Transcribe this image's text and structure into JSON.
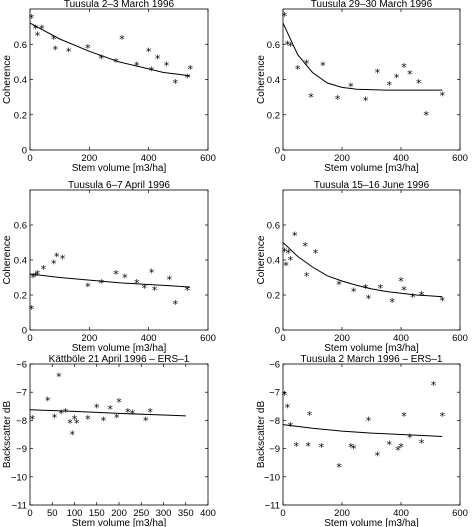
{
  "chart_data": [
    {
      "type": "scatter",
      "title": "Tuusula 2–3 March 1996",
      "xlabel": "Stem volume  [m3/ha]",
      "ylabel": "Coherence",
      "xlim": [
        0,
        600
      ],
      "ylim": [
        0,
        0.8
      ],
      "xticks": [
        0,
        200,
        400,
        600
      ],
      "yticks": [
        0,
        0.2,
        0.4,
        0.6
      ],
      "ytick_labels": [
        "0",
        "0.2",
        "0.4",
        "0.6"
      ],
      "series": [
        {
          "marker": "star",
          "x": [
            5,
            18,
            25,
            40,
            80,
            85,
            130,
            195,
            240,
            290,
            310,
            360,
            400,
            410,
            430,
            460,
            490,
            530,
            540
          ],
          "y": [
            0.75,
            0.69,
            0.65,
            0.69,
            0.63,
            0.57,
            0.56,
            0.58,
            0.52,
            0.5,
            0.63,
            0.48,
            0.56,
            0.45,
            0.52,
            0.48,
            0.38,
            0.41,
            0.46
          ]
        },
        {
          "marker": "line",
          "x": [
            0,
            100,
            200,
            300,
            400,
            450,
            500,
            540
          ],
          "y": [
            0.72,
            0.63,
            0.56,
            0.5,
            0.46,
            0.44,
            0.43,
            0.42
          ]
        }
      ]
    },
    {
      "type": "scatter",
      "title": "Tuusula 29–30 March 1996",
      "xlabel": "Stem volume  [m3/ha]",
      "ylabel": "Coherence",
      "xlim": [
        0,
        600
      ],
      "ylim": [
        0,
        0.8
      ],
      "xticks": [
        0,
        200,
        400,
        600
      ],
      "yticks": [
        0,
        0.2,
        0.4,
        0.6
      ],
      "ytick_labels": [
        "0",
        "0.2",
        "0.4",
        "0.6"
      ],
      "series": [
        {
          "marker": "star",
          "x": [
            5,
            15,
            25,
            50,
            80,
            95,
            135,
            185,
            230,
            280,
            320,
            360,
            385,
            410,
            430,
            460,
            485,
            540
          ],
          "y": [
            0.76,
            0.6,
            0.59,
            0.46,
            0.49,
            0.3,
            0.48,
            0.29,
            0.36,
            0.28,
            0.44,
            0.37,
            0.41,
            0.47,
            0.43,
            0.38,
            0.2,
            0.31
          ]
        },
        {
          "marker": "line",
          "x": [
            0,
            50,
            100,
            150,
            200,
            250,
            350,
            450,
            540
          ],
          "y": [
            0.72,
            0.54,
            0.44,
            0.38,
            0.355,
            0.345,
            0.34,
            0.34,
            0.34
          ]
        }
      ]
    },
    {
      "type": "scatter",
      "title": "Tuusula 6–7 April 1996",
      "xlabel": "Stem volume  [m3/ha]",
      "ylabel": "Coherence",
      "xlim": [
        0,
        600
      ],
      "ylim": [
        0,
        0.8
      ],
      "xticks": [
        0,
        200,
        400,
        600
      ],
      "yticks": [
        0,
        0.2,
        0.4,
        0.6
      ],
      "ytick_labels": [
        "0",
        "0.2",
        "0.4",
        "0.6"
      ],
      "series": [
        {
          "marker": "star",
          "x": [
            5,
            10,
            18,
            25,
            45,
            80,
            90,
            110,
            195,
            240,
            290,
            320,
            360,
            385,
            410,
            420,
            470,
            490,
            530
          ],
          "y": [
            0.12,
            0.3,
            0.31,
            0.32,
            0.35,
            0.38,
            0.42,
            0.41,
            0.25,
            0.27,
            0.32,
            0.3,
            0.27,
            0.24,
            0.33,
            0.23,
            0.29,
            0.15,
            0.23
          ]
        },
        {
          "marker": "line",
          "x": [
            0,
            100,
            200,
            300,
            400,
            500,
            540
          ],
          "y": [
            0.32,
            0.3,
            0.285,
            0.27,
            0.26,
            0.25,
            0.245
          ]
        }
      ]
    },
    {
      "type": "scatter",
      "title": "Tuusula 15–16 June 1996",
      "xlabel": "Stem volume  [m3/ha]",
      "ylabel": "Coherence",
      "xlim": [
        0,
        600
      ],
      "ylim": [
        0,
        0.8
      ],
      "xticks": [
        0,
        200,
        400,
        600
      ],
      "yticks": [
        0,
        0.2,
        0.4,
        0.6
      ],
      "ytick_labels": [
        "0",
        "0.2",
        "0.4",
        "0.6"
      ],
      "series": [
        {
          "marker": "star",
          "x": [
            5,
            10,
            18,
            25,
            40,
            75,
            80,
            110,
            190,
            240,
            280,
            290,
            330,
            370,
            400,
            410,
            440,
            470,
            540
          ],
          "y": [
            0.45,
            0.37,
            0.44,
            0.4,
            0.54,
            0.48,
            0.31,
            0.44,
            0.26,
            0.22,
            0.24,
            0.18,
            0.24,
            0.16,
            0.28,
            0.23,
            0.19,
            0.2,
            0.17
          ]
        },
        {
          "marker": "line",
          "x": [
            0,
            50,
            100,
            150,
            200,
            250,
            300,
            350,
            400,
            450,
            500,
            540
          ],
          "y": [
            0.5,
            0.42,
            0.36,
            0.31,
            0.28,
            0.255,
            0.235,
            0.22,
            0.21,
            0.2,
            0.195,
            0.19
          ]
        }
      ]
    },
    {
      "type": "scatter",
      "title": "Kättböle 21 April 1996 – ERS–1",
      "xlabel": "Stem volume  [m3/ha]",
      "ylabel": "Backscatter  dB",
      "xlim": [
        0,
        400
      ],
      "ylim": [
        -11,
        -6
      ],
      "xticks": [
        0,
        50,
        100,
        150,
        200,
        250,
        300,
        350,
        400
      ],
      "yticks": [
        -11,
        -10,
        -9,
        -8,
        -7,
        -6
      ],
      "ytick_labels": [
        "−11",
        "−10",
        "−9",
        "−8",
        "−7",
        "−6"
      ],
      "series": [
        {
          "marker": "star",
          "x": [
            5,
            40,
            55,
            65,
            70,
            80,
            90,
            95,
            100,
            105,
            130,
            150,
            165,
            180,
            195,
            200,
            220,
            230,
            260,
            270
          ],
          "y": [
            -7.95,
            -7.3,
            -7.9,
            -6.45,
            -7.75,
            -7.7,
            -8.1,
            -8.5,
            -7.95,
            -8.1,
            -7.95,
            -7.55,
            -8.0,
            -7.6,
            -7.9,
            -7.35,
            -7.7,
            -7.75,
            -8.0,
            -7.7
          ]
        },
        {
          "marker": "line",
          "x": [
            0,
            100,
            200,
            300,
            350
          ],
          "y": [
            -7.62,
            -7.68,
            -7.75,
            -7.81,
            -7.84
          ]
        }
      ]
    },
    {
      "type": "scatter",
      "title": "Tuusula 2 March 1996 – ERS–1",
      "xlabel": "Stem volume  [m3/ha]",
      "ylabel": "Backscatter  dB",
      "xlim": [
        0,
        600
      ],
      "ylim": [
        -11,
        -6
      ],
      "xticks": [
        0,
        200,
        400,
        600
      ],
      "yticks": [
        -11,
        -10,
        -9,
        -8,
        -7,
        -6
      ],
      "ytick_labels": [
        "−11",
        "−10",
        "−9",
        "−8",
        "−7",
        "−6"
      ],
      "series": [
        {
          "marker": "star",
          "x": [
            5,
            15,
            25,
            45,
            85,
            90,
            130,
            190,
            230,
            240,
            290,
            320,
            360,
            390,
            400,
            410,
            430,
            470,
            510,
            540
          ],
          "y": [
            -7.1,
            -7.55,
            -8.2,
            -8.9,
            -8.9,
            -7.8,
            -8.95,
            -9.65,
            -8.95,
            -9.0,
            -8.0,
            -9.25,
            -8.85,
            -9.05,
            -8.95,
            -7.85,
            -8.6,
            -8.8,
            -6.75,
            -7.85
          ]
        },
        {
          "marker": "line",
          "x": [
            0,
            100,
            200,
            300,
            400,
            500,
            540
          ],
          "y": [
            -8.15,
            -8.28,
            -8.38,
            -8.45,
            -8.5,
            -8.55,
            -8.57
          ]
        }
      ]
    }
  ]
}
